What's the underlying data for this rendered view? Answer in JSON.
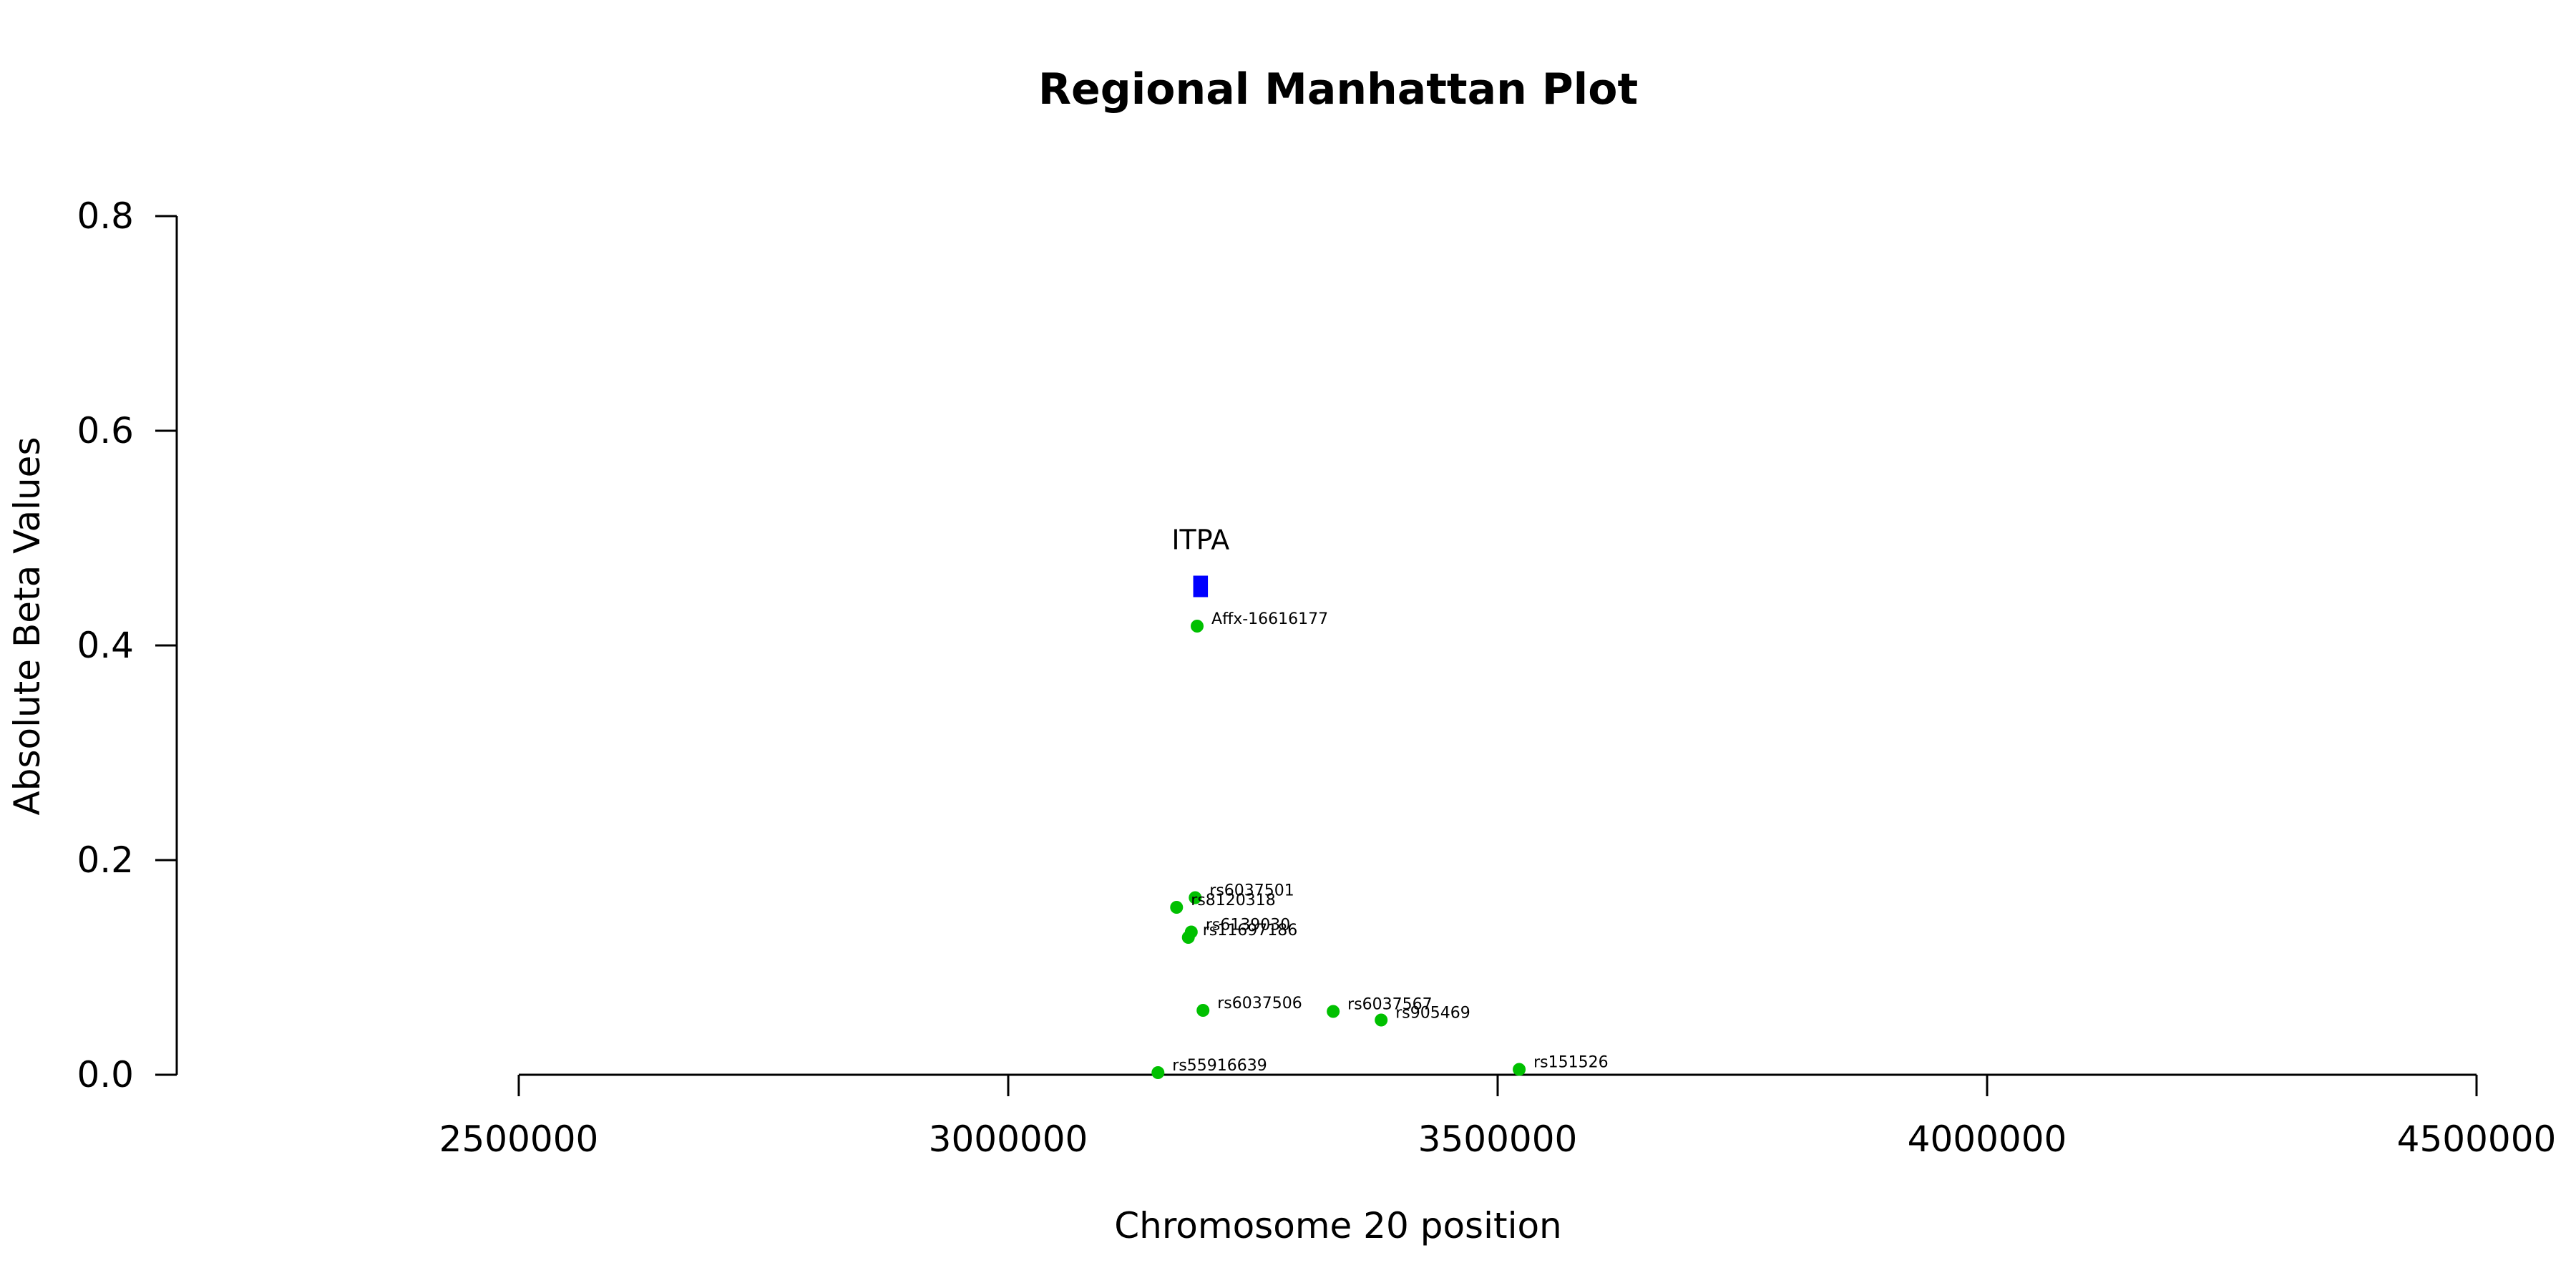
{
  "chart_data": {
    "type": "scatter",
    "title": "Regional Manhattan Plot",
    "xlabel": "Chromosome 20 position",
    "ylabel": "Absolute Beta Values",
    "xlim": [
      2500000,
      4500000
    ],
    "ylim": [
      0,
      0.8
    ],
    "x_ticks": [
      2500000,
      3000000,
      3500000,
      4000000,
      4500000
    ],
    "x_tick_labels": [
      "2500000",
      "3000000",
      "3500000",
      "4000000",
      "4500000"
    ],
    "y_ticks": [
      0,
      0.2,
      0.4,
      0.6,
      0.8
    ],
    "y_tick_labels": [
      "0.0",
      "0.2",
      "0.4",
      "0.6",
      "0.8"
    ],
    "point_color": "#00c000",
    "gene_color": "#0000ff",
    "points": [
      {
        "label": "Affx-16616177",
        "x": 3193000,
        "y": 0.418
      },
      {
        "label": "rs6037501",
        "x": 3191000,
        "y": 0.165
      },
      {
        "label": "rs8120318",
        "x": 3172000,
        "y": 0.156
      },
      {
        "label": "rs6139030",
        "x": 3187000,
        "y": 0.133
      },
      {
        "label": "rs11697186",
        "x": 3184000,
        "y": 0.128
      },
      {
        "label": "rs6037506",
        "x": 3199000,
        "y": 0.06
      },
      {
        "label": "rs6037567",
        "x": 3332000,
        "y": 0.059
      },
      {
        "label": "rs905469",
        "x": 3381000,
        "y": 0.051
      },
      {
        "label": "rs151526",
        "x": 3522000,
        "y": 0.005
      },
      {
        "label": "rs55916639",
        "x": 3153000,
        "y": 0.002
      }
    ],
    "gene": {
      "label": "ITPA",
      "x_start": 3189000,
      "x_end": 3204000,
      "y": 0.455
    }
  }
}
